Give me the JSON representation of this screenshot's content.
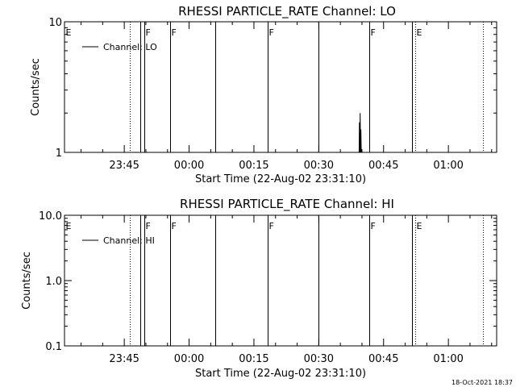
{
  "chart_data": [
    {
      "type": "line",
      "title": "RHESSI PARTICLE_RATE Channel: LO",
      "xlabel": "Start Time (22-Aug-02 23:31:10)",
      "ylabel": "Counts/sec",
      "yscale": "log",
      "ylim": [
        1,
        10
      ],
      "y_ticks": [
        "1",
        "10"
      ],
      "xlim": [
        "23:31:10",
        "01:11:10"
      ],
      "x_ticks": [
        {
          "t": "23:45",
          "label": "23:45"
        },
        {
          "t": "00:00",
          "label": "00:00"
        },
        {
          "t": "00:15",
          "label": "00:15"
        },
        {
          "t": "00:30",
          "label": "00:30"
        },
        {
          "t": "00:45",
          "label": "00:45"
        },
        {
          "t": "01:00",
          "label": "01:00"
        }
      ],
      "grid": false,
      "legend": {
        "position": "top-left",
        "entries": [
          "Channel: LO"
        ]
      },
      "markers": [
        {
          "t": "23:31:10",
          "label": "E",
          "style": "none"
        },
        {
          "t": "23:46:20",
          "label": "",
          "style": "dotted"
        },
        {
          "t": "23:48:40",
          "label": "",
          "style": "solid"
        },
        {
          "t": "23:49:40",
          "label": "F",
          "style": "solid"
        },
        {
          "t": "23:55:40",
          "label": "F",
          "style": "solid"
        },
        {
          "t": "00:06:00",
          "label": "",
          "style": "solid"
        },
        {
          "t": "00:18:10",
          "label": "F",
          "style": "solid"
        },
        {
          "t": "00:30:00",
          "label": "",
          "style": "solid"
        },
        {
          "t": "00:41:40",
          "label": "F",
          "style": "solid"
        },
        {
          "t": "00:51:30",
          "label": "",
          "style": "solid"
        },
        {
          "t": "00:52:20",
          "label": "E",
          "style": "dotted"
        },
        {
          "t": "01:08:00",
          "label": "",
          "style": "dotted"
        }
      ],
      "series": [
        {
          "name": "Channel: LO",
          "points": [
            {
              "t": "00:39:20",
              "y": 1.0
            },
            {
              "t": "00:39:25",
              "y": 1.7
            },
            {
              "t": "00:39:30",
              "y": 1.0
            },
            {
              "t": "00:39:35",
              "y": 2.0
            },
            {
              "t": "00:39:40",
              "y": 1.0
            },
            {
              "t": "00:39:45",
              "y": 1.5
            },
            {
              "t": "00:39:50",
              "y": 1.0
            }
          ]
        }
      ]
    },
    {
      "type": "line",
      "title": "RHESSI PARTICLE_RATE Channel: HI",
      "xlabel": "Start Time (22-Aug-02 23:31:10)",
      "ylabel": "Counts/sec",
      "yscale": "log",
      "ylim": [
        0.1,
        10
      ],
      "y_ticks": [
        "0.1",
        "1.0",
        "10.0"
      ],
      "xlim": [
        "23:31:10",
        "01:11:10"
      ],
      "x_ticks": [
        {
          "t": "23:45",
          "label": "23:45"
        },
        {
          "t": "00:00",
          "label": "00:00"
        },
        {
          "t": "00:15",
          "label": "00:15"
        },
        {
          "t": "00:30",
          "label": "00:30"
        },
        {
          "t": "00:45",
          "label": "00:45"
        },
        {
          "t": "01:00",
          "label": "01:00"
        }
      ],
      "grid": false,
      "legend": {
        "position": "top-left",
        "entries": [
          "Channel: HI"
        ]
      },
      "markers": [
        {
          "t": "23:31:10",
          "label": "E",
          "style": "none"
        },
        {
          "t": "23:46:20",
          "label": "",
          "style": "dotted"
        },
        {
          "t": "23:48:40",
          "label": "",
          "style": "solid"
        },
        {
          "t": "23:49:40",
          "label": "F",
          "style": "solid"
        },
        {
          "t": "23:55:40",
          "label": "F",
          "style": "solid"
        },
        {
          "t": "00:06:00",
          "label": "",
          "style": "solid"
        },
        {
          "t": "00:18:10",
          "label": "F",
          "style": "solid"
        },
        {
          "t": "00:30:00",
          "label": "",
          "style": "solid"
        },
        {
          "t": "00:41:40",
          "label": "F",
          "style": "solid"
        },
        {
          "t": "00:51:30",
          "label": "",
          "style": "solid"
        },
        {
          "t": "00:52:20",
          "label": "E",
          "style": "dotted"
        },
        {
          "t": "01:08:00",
          "label": "",
          "style": "dotted"
        }
      ],
      "series": [
        {
          "name": "Channel: HI",
          "points": [
            {
              "t": "01:10:40",
              "y": 1.0
            },
            {
              "t": "01:11:10",
              "y": 1.0
            }
          ]
        }
      ]
    }
  ],
  "footer": {
    "timestamp": "18-Oct-2021 18:37"
  }
}
